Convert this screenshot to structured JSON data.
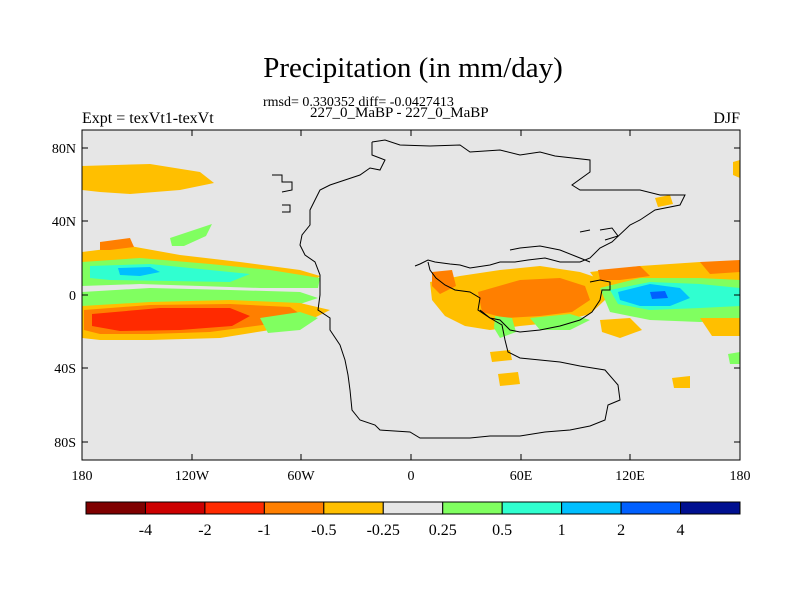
{
  "title": "Precipitation (in mm/day)",
  "stats": "rmsd= 0.330352 diff= -0.0427413",
  "subtitle": "227_0_MaBP - 227_0_MaBP",
  "left_label": "Expt = texVt1-texVt",
  "right_label": "DJF",
  "colors": {
    "background": "#e6e6e6",
    "coastline": "#000000"
  },
  "map": {
    "lat_ticks": [
      "80N",
      "40N",
      "0",
      "40S",
      "80S"
    ],
    "lon_ticks": [
      "180",
      "120W",
      "60W",
      "0",
      "60E",
      "120E",
      "180"
    ]
  },
  "colorbar": {
    "colors": [
      "#7f0000",
      "#cc0000",
      "#ff2a00",
      "#ff7f00",
      "#ffbf00",
      "#e6e6e6",
      "#80ff60",
      "#30ffd0",
      "#00bfff",
      "#0060ff",
      "#001090"
    ],
    "labels": [
      "-4",
      "-2",
      "-1",
      "-0.5",
      "-0.25",
      "0.25",
      "0.5",
      "1",
      "2",
      "4"
    ]
  }
}
